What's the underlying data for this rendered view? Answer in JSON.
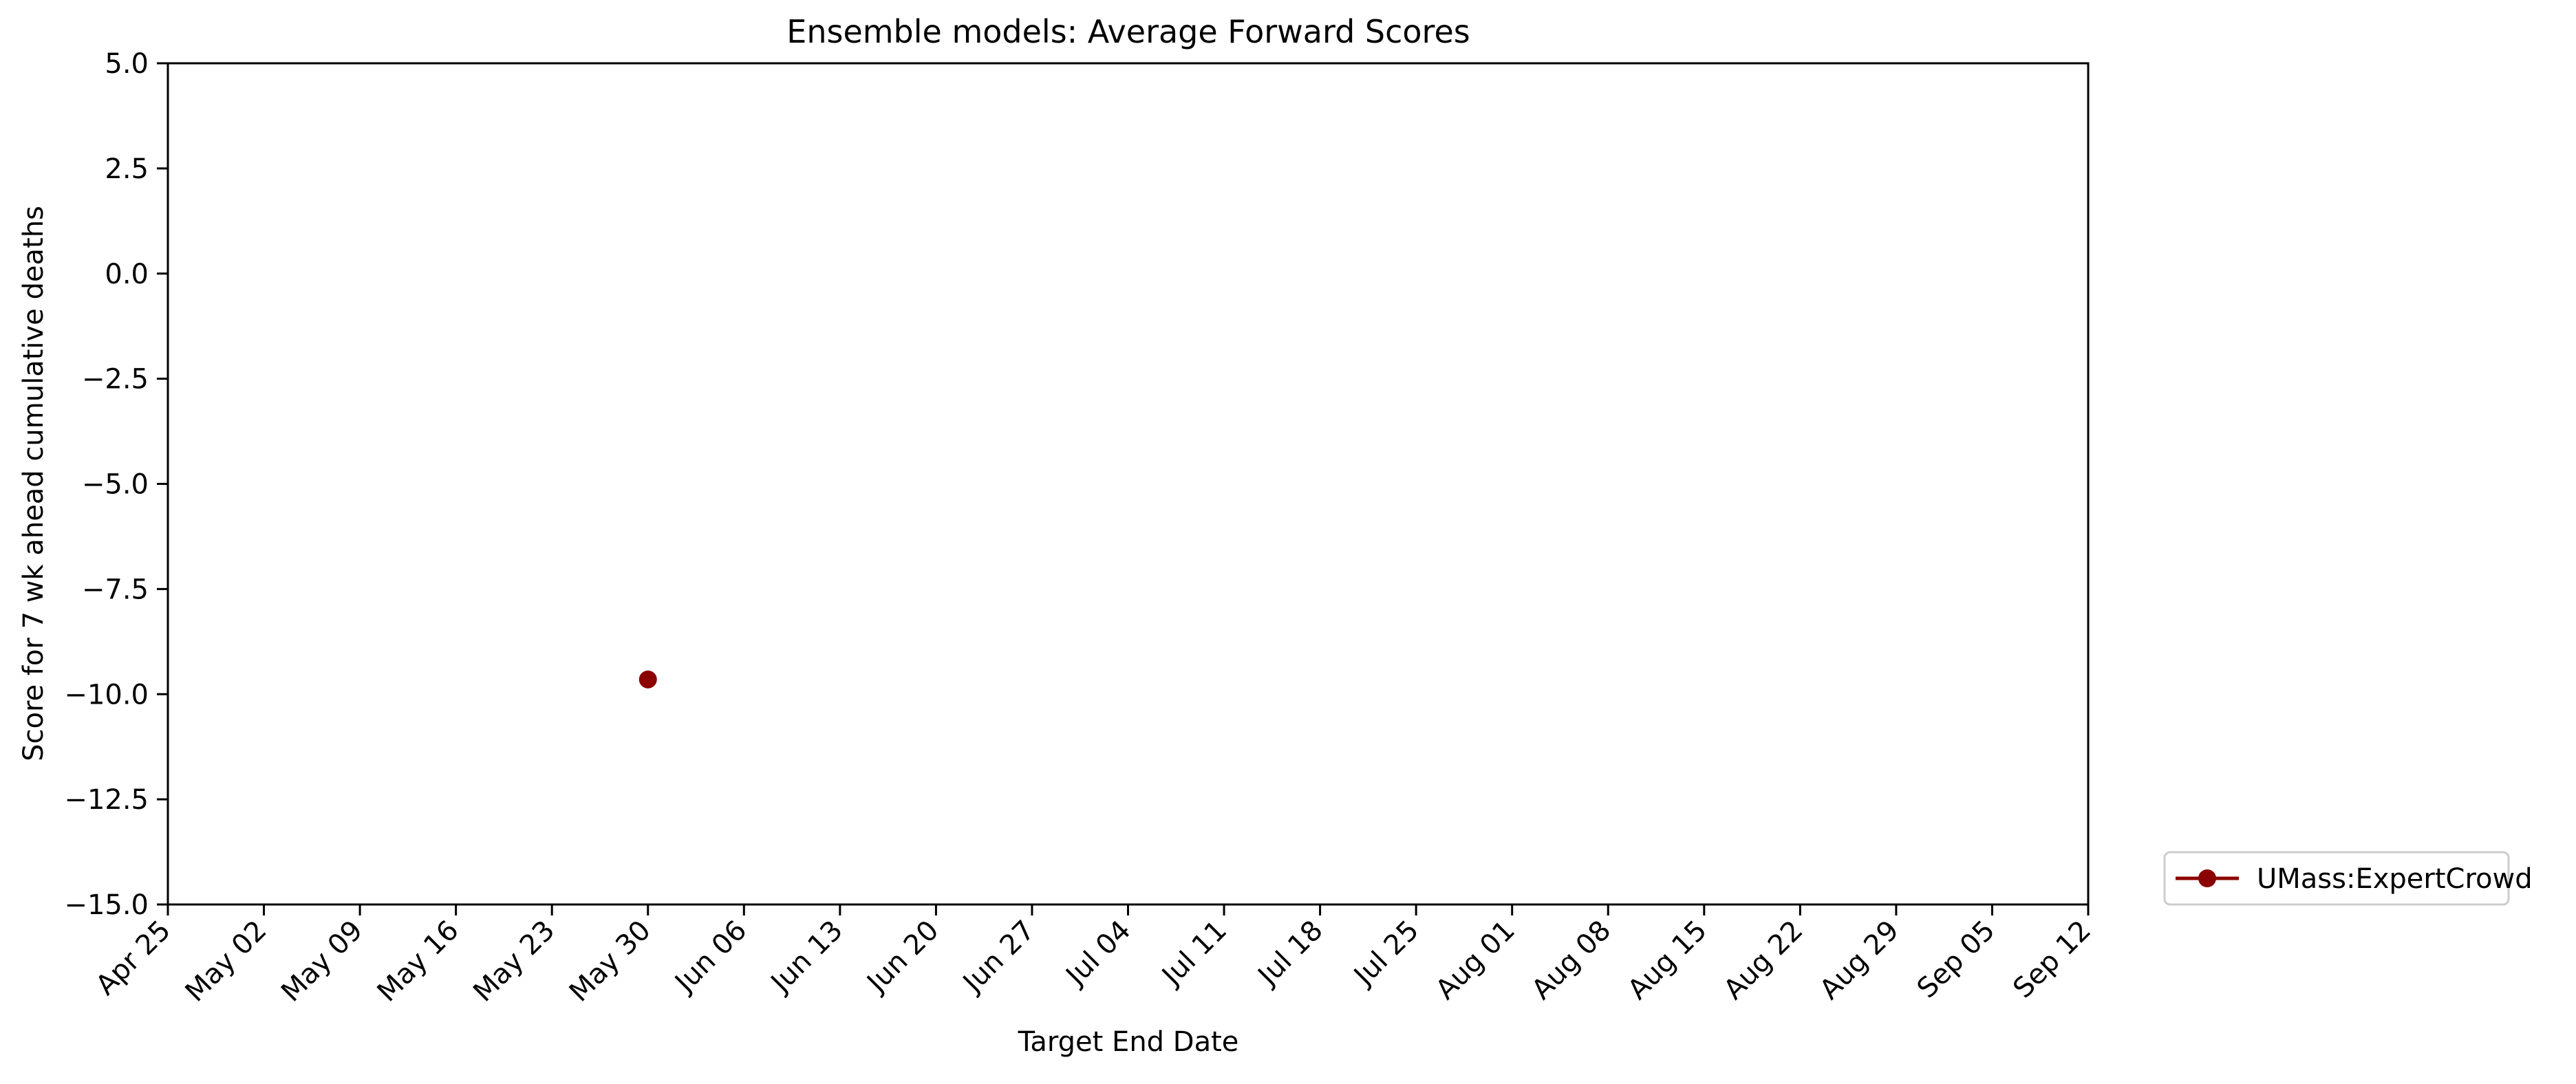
{
  "chart_data": {
    "type": "line",
    "title": "Ensemble models: Average Forward Scores",
    "xlabel": "Target End Date",
    "ylabel": "Score for 7 wk ahead cumulative deaths",
    "x_ticks": [
      "Apr 25",
      "May 02",
      "May 09",
      "May 16",
      "May 23",
      "May 30",
      "Jun 06",
      "Jun 13",
      "Jun 20",
      "Jun 27",
      "Jul 04",
      "Jul 11",
      "Jul 18",
      "Jul 25",
      "Aug 01",
      "Aug 08",
      "Aug 15",
      "Aug 22",
      "Aug 29",
      "Sep 05",
      "Sep 12"
    ],
    "y_ticks": [
      "5.0",
      "2.5",
      "0.0",
      "−2.5",
      "−5.0",
      "−7.5",
      "−10.0",
      "−12.5",
      "−15.0"
    ],
    "y_tick_values": [
      5.0,
      2.5,
      0.0,
      -2.5,
      -5.0,
      -7.5,
      -10.0,
      -12.5,
      -15.0
    ],
    "ylim": [
      -15,
      5
    ],
    "xlim": [
      "Apr 25",
      "Sep 12"
    ],
    "grid": false,
    "legend_position": "outside-bottom-right",
    "series": [
      {
        "name": "UMass:ExpertCrowd",
        "color": "#8b0000",
        "marker": "circle",
        "points": [
          {
            "x": "May 30",
            "y": -9.65
          }
        ]
      }
    ]
  }
}
